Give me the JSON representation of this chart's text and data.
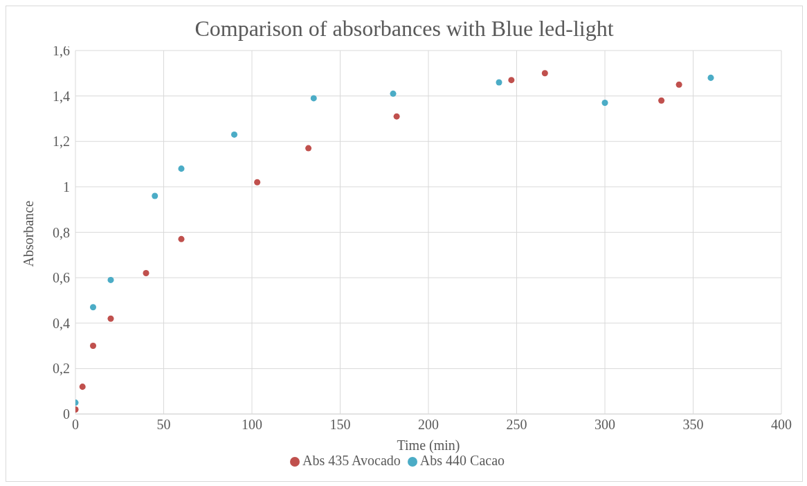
{
  "chart_data": {
    "type": "scatter",
    "title": "Comparison of absorbances with Blue led-light",
    "xlabel": "Time (min)",
    "ylabel": "Absorbance",
    "series": [
      {
        "name": "Abs 440 Cacao",
        "color": "#4bacc6",
        "x": [
          0,
          10,
          20,
          45,
          60,
          90,
          135,
          180,
          240,
          300,
          360
        ],
        "values": [
          0.05,
          0.47,
          0.59,
          0.96,
          1.08,
          1.23,
          1.39,
          1.41,
          1.46,
          1.37,
          1.48
        ]
      },
      {
        "name": "Abs 435 Avocado",
        "color": "#c0504d",
        "x": [
          0,
          4,
          10,
          20,
          40,
          60,
          103,
          132,
          182,
          247,
          266,
          332,
          342
        ],
        "values": [
          0.02,
          0.12,
          0.3,
          0.42,
          0.62,
          0.77,
          1.02,
          1.17,
          1.31,
          1.47,
          1.5,
          1.38,
          1.45
        ]
      }
    ],
    "xlim": [
      0,
      400
    ],
    "xticks": [
      0,
      50,
      100,
      150,
      200,
      250,
      300,
      350,
      400
    ],
    "ylim": [
      0,
      1.6
    ],
    "yticks": [
      0,
      {
        "value": 0.2,
        "label": "0,2"
      },
      {
        "value": 0.4,
        "label": "0,4"
      },
      {
        "value": 0.6,
        "label": "0,6"
      },
      {
        "value": 0.8,
        "label": "0,8"
      },
      1,
      {
        "value": 1.2,
        "label": "1,2"
      },
      {
        "value": 1.4,
        "label": "1,4"
      },
      {
        "value": 1.6,
        "label": "1,6"
      }
    ],
    "grid": true,
    "legend": "bottom",
    "marker": "circle"
  }
}
